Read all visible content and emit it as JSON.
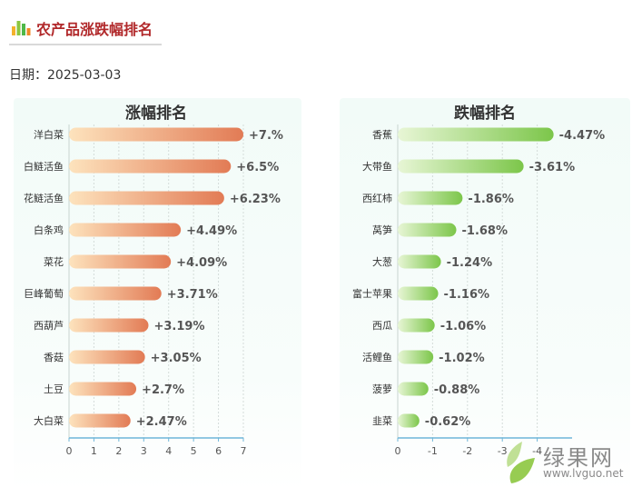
{
  "header": {
    "title": "农产品涨跌幅排名",
    "date_label": "日期：",
    "date": "2025-03-03"
  },
  "watermark": {
    "name": "绿果网",
    "url": "www.lvguo.net"
  },
  "chart_data": [
    {
      "type": "bar",
      "orientation": "horizontal",
      "title": "涨幅排名",
      "categories": [
        "洋白菜",
        "白鲢活鱼",
        "花鲢活鱼",
        "白条鸡",
        "菜花",
        "巨峰葡萄",
        "西葫芦",
        "香菇",
        "土豆",
        "大白菜"
      ],
      "values": [
        7.0,
        6.5,
        6.23,
        4.49,
        4.09,
        3.71,
        3.19,
        3.05,
        2.7,
        2.47
      ],
      "value_labels": [
        "+7.%",
        "+6.5%",
        "+6.23%",
        "+4.49%",
        "+4.09%",
        "+3.71%",
        "+3.19%",
        "+3.05%",
        "+2.7%",
        "+2.47%"
      ],
      "xlim": [
        0,
        7
      ],
      "xticks": [
        0,
        1,
        2,
        3,
        4,
        5,
        6,
        7
      ],
      "xtick_labels": [
        "0",
        "1",
        "2",
        "3",
        "4",
        "5",
        "6",
        "7"
      ],
      "grid": true,
      "colors": [
        "#fde3bd",
        "#e27b55"
      ]
    },
    {
      "type": "bar",
      "orientation": "horizontal",
      "title": "跌幅排名",
      "categories": [
        "香蕉",
        "大带鱼",
        "西红柿",
        "莴笋",
        "大葱",
        "富士苹果",
        "西瓜",
        "活鲤鱼",
        "菠萝",
        "韭菜"
      ],
      "values": [
        -4.47,
        -3.61,
        -1.86,
        -1.68,
        -1.24,
        -1.16,
        -1.06,
        -1.02,
        -0.88,
        -0.62
      ],
      "value_labels": [
        "-4.47%",
        "-3.61%",
        "-1.86%",
        "-1.68%",
        "-1.24%",
        "-1.16%",
        "-1.06%",
        "-1.02%",
        "-0.88%",
        "-0.62%"
      ],
      "xlim": [
        0,
        -5
      ],
      "xticks": [
        0,
        -1,
        -2,
        -3,
        -4
      ],
      "xtick_labels": [
        "0",
        "-1",
        "-2",
        "-3",
        "-4"
      ],
      "grid": true,
      "colors": [
        "#e8f6d6",
        "#7cc64a"
      ]
    }
  ]
}
